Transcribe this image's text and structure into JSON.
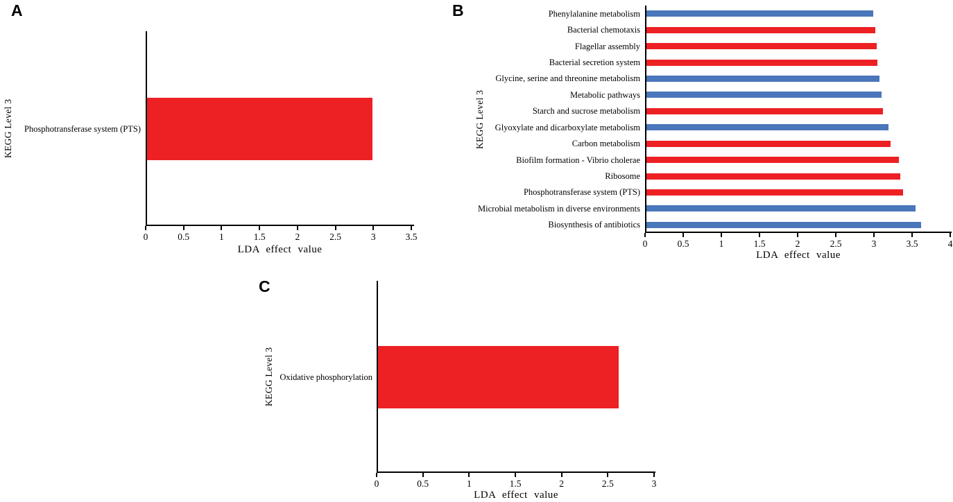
{
  "figure": {
    "colors": {
      "red": "#ed2024",
      "blue": "#4a76ba",
      "axis": "#000000",
      "background": "#ffffff"
    }
  },
  "chart_data": [
    {
      "panel_label": "A",
      "type": "bar",
      "orientation": "horizontal",
      "xlabel": "LDA effect value",
      "ylabel": "KEGG Level 3",
      "xlim": [
        0,
        3.5
      ],
      "xticks": [
        "0",
        "0.5",
        "1",
        "1.5",
        "2",
        "2.5",
        "3",
        "3.5"
      ],
      "categories": [
        "Phosphotransferase system (PTS)"
      ],
      "values": [
        2.97
      ],
      "bar_colors": [
        "red"
      ],
      "grid": false,
      "legend": false
    },
    {
      "panel_label": "B",
      "type": "bar",
      "orientation": "horizontal",
      "xlabel": "LDA effect value",
      "ylabel": "KEGG Level 3",
      "xlim": [
        0,
        4
      ],
      "xticks": [
        "0",
        "0.5",
        "1",
        "1.5",
        "2",
        "2.5",
        "3",
        "3.5",
        "4"
      ],
      "categories": [
        "Phenylalanine metabolism",
        "Bacterial chemotaxis",
        "Flagellar assembly",
        "Bacterial secretion system",
        "Glycine, serine and threonine metabolism",
        "Metabolic pathways",
        "Starch and sucrose metabolism",
        "Glyoxylate and dicarboxylate metabolism",
        "Carbon metabolism",
        "Biofilm formation - Vibrio cholerae",
        "Ribosome",
        "Phosphotransferase system (PTS)",
        "Microbial metabolism in diverse environments",
        "Biosynthesis of antibiotics"
      ],
      "values": [
        2.97,
        3.0,
        3.02,
        3.03,
        3.05,
        3.08,
        3.1,
        3.17,
        3.2,
        3.31,
        3.33,
        3.36,
        3.53,
        3.6
      ],
      "bar_colors": [
        "blue",
        "red",
        "red",
        "red",
        "blue",
        "blue",
        "red",
        "blue",
        "red",
        "red",
        "red",
        "red",
        "blue",
        "blue"
      ],
      "grid": false,
      "legend": false
    },
    {
      "panel_label": "C",
      "type": "bar",
      "orientation": "horizontal",
      "xlabel": "LDA effect value",
      "ylabel": "KEGG Level 3",
      "xlim": [
        0,
        3
      ],
      "xticks": [
        "0",
        "0.5",
        "1",
        "1.5",
        "2",
        "2.5",
        "3"
      ],
      "categories": [
        "Oxidative phosphorylation"
      ],
      "values": [
        2.6
      ],
      "bar_colors": [
        "red"
      ],
      "grid": false,
      "legend": false
    }
  ]
}
